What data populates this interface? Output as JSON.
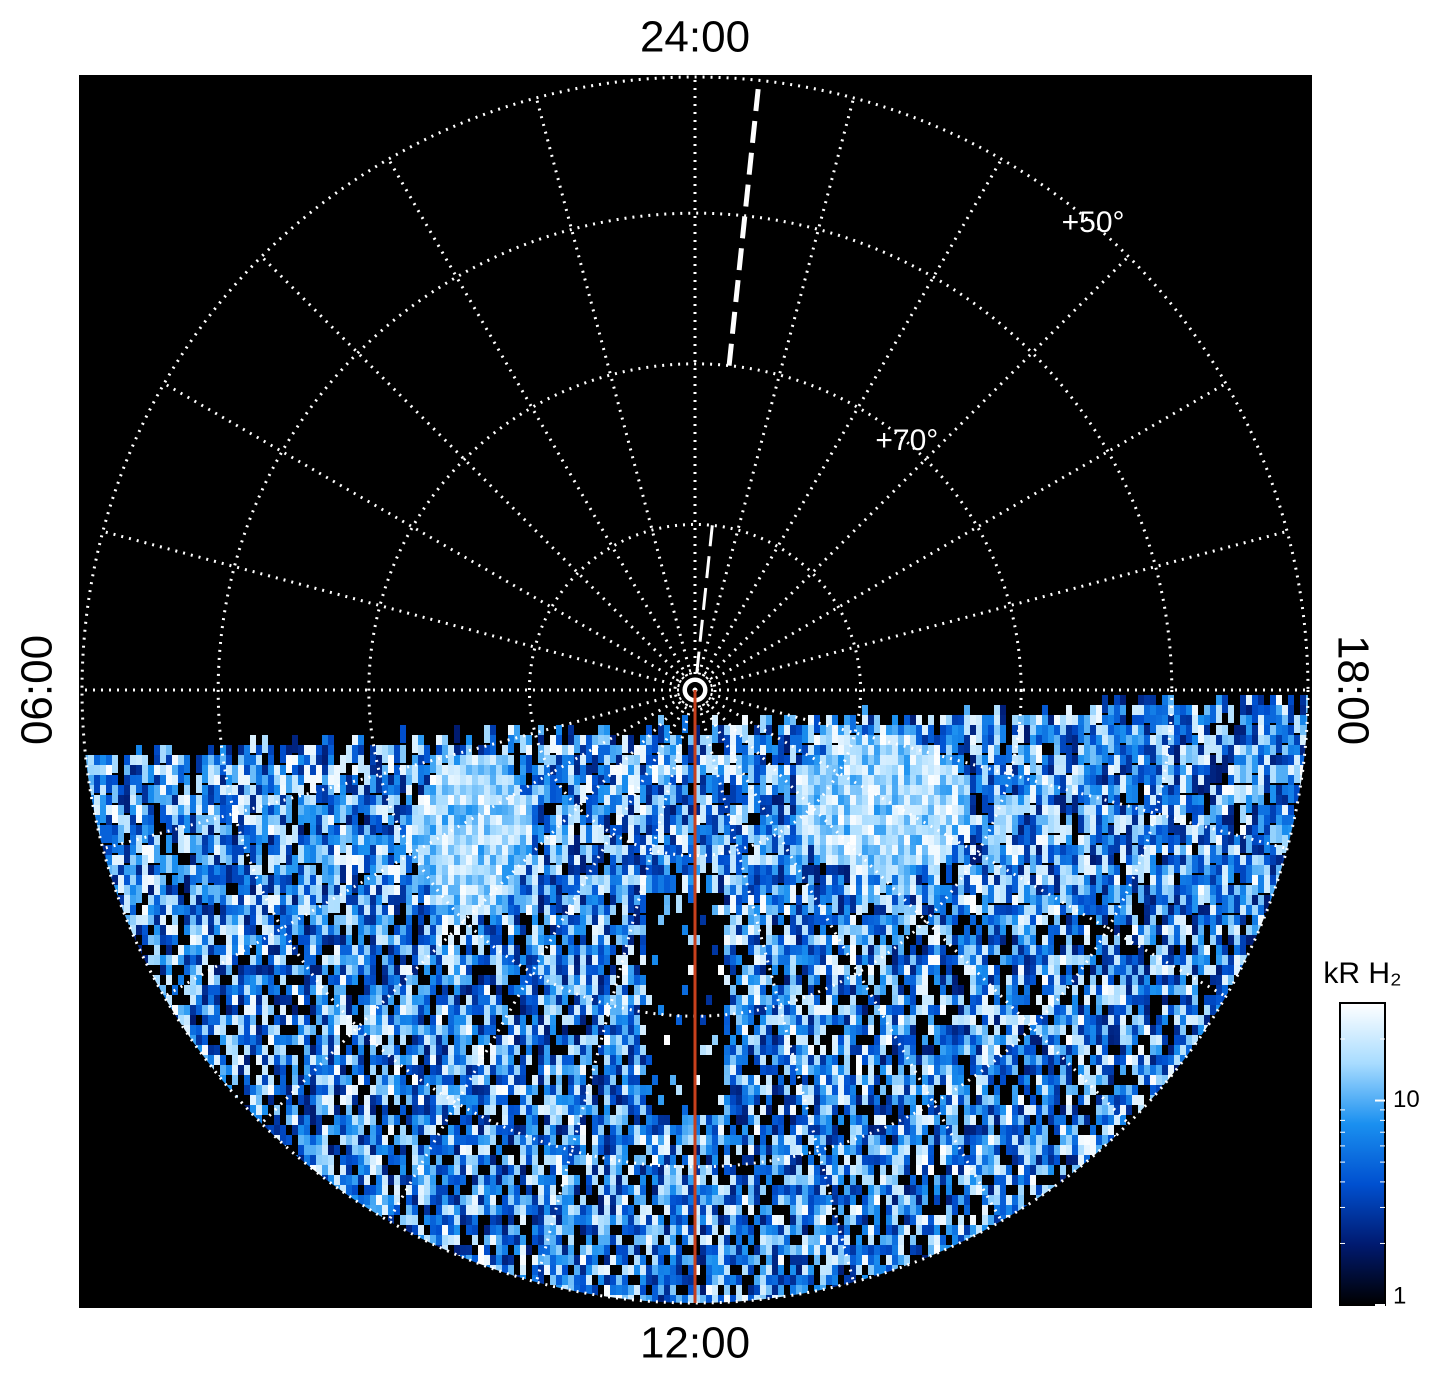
{
  "chart_data": {
    "type": "polar-image",
    "theta_ticks": [
      {
        "value": 0,
        "label": "24:00"
      },
      {
        "value": 6,
        "label": "06:00"
      },
      {
        "value": 12,
        "label": "12:00"
      },
      {
        "value": 18,
        "label": "18:00"
      }
    ],
    "rlim": [
      90,
      50
    ],
    "rticks": [
      80,
      {
        "value": 70,
        "label": "+70°"
      },
      60,
      {
        "value": 50,
        "label": "+50°"
      }
    ],
    "meridian_lines": [
      {
        "lt": 23.6,
        "color": "#ffffff"
      },
      {
        "lt": 12,
        "color": "#c8401c"
      }
    ],
    "colorbar": {
      "label": "kR H₂",
      "clim": [
        1,
        30
      ],
      "log": true,
      "ticks": [
        1,
        10
      ],
      "colors": [
        "#000000",
        "#001a70",
        "#0050d0",
        "#1a90f0",
        "#a8dcff",
        "#ffffff"
      ]
    }
  }
}
